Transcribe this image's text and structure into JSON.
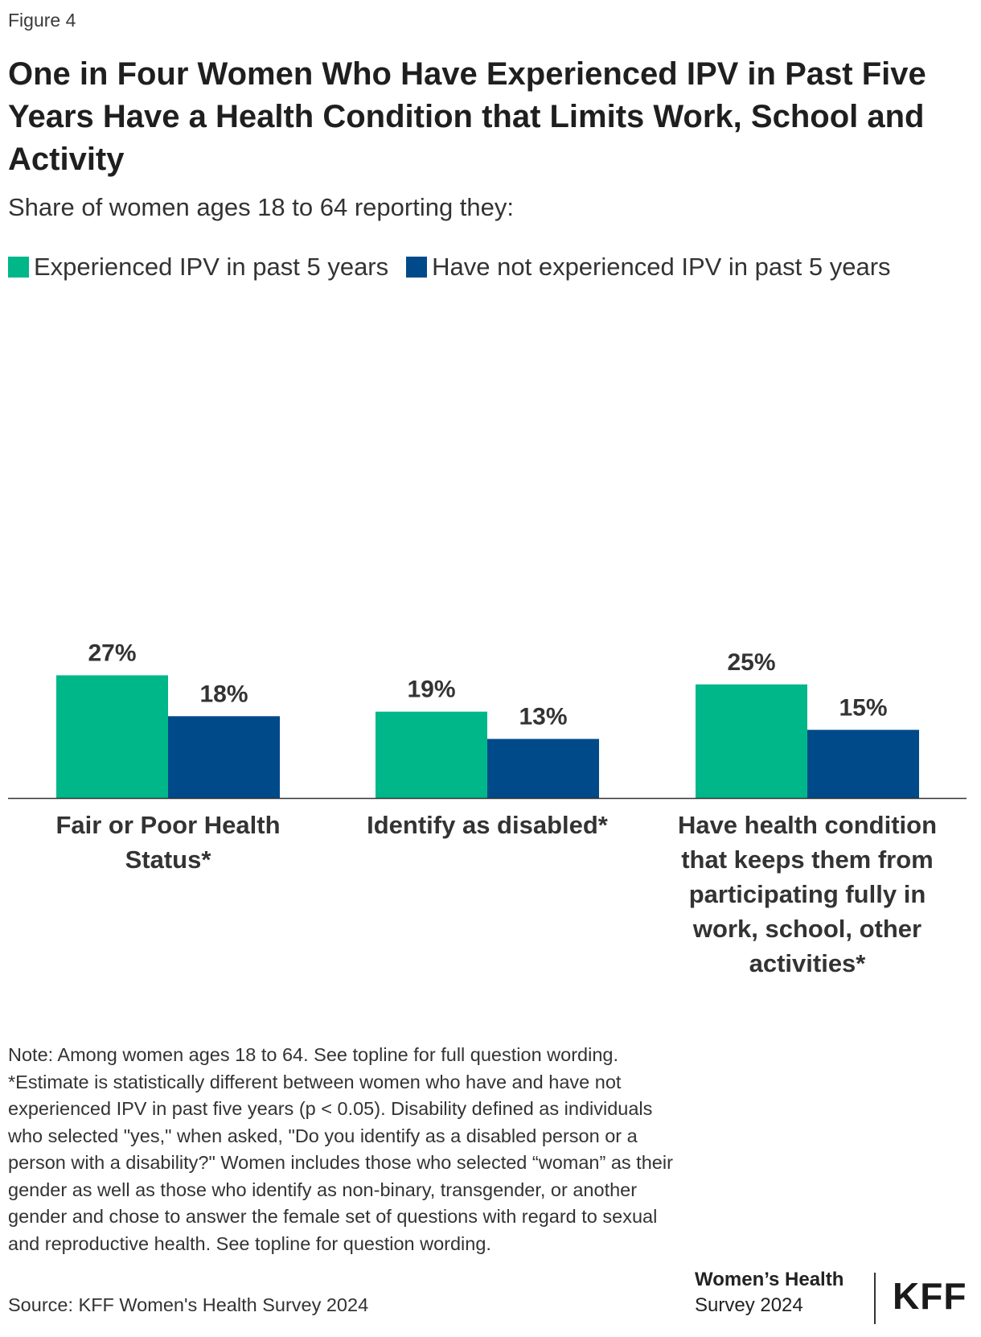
{
  "figure_label": "Figure 4",
  "title": "One in Four Women Who Have Experienced IPV in Past Five Years Have a Health Condition that Limits Work, School and Activity",
  "subtitle": "Share of women ages 18 to 64 reporting they:",
  "colors": {
    "ipv": "#00B78A",
    "no_ipv": "#004A8A",
    "axis": "#333333"
  },
  "chart_data": {
    "type": "bar",
    "title": "One in Four Women Who Have Experienced IPV in Past Five Years Have a Health Condition that Limits Work, School and Activity",
    "subtitle": "Share of women ages 18 to 64 reporting they:",
    "categories": [
      [
        "Fair or Poor Health",
        "Status*"
      ],
      [
        "Identify as disabled*"
      ],
      [
        "Have health condition",
        "that keeps them from",
        "participating fully in",
        "work, school, other",
        "activities*"
      ]
    ],
    "series": [
      {
        "name": "Experienced IPV in past 5 years",
        "color": "#00B78A",
        "values": [
          27,
          19,
          25
        ],
        "labels": [
          "27%",
          "19%",
          "25%"
        ]
      },
      {
        "name": "Have not experienced IPV in past 5 years",
        "color": "#004A8A",
        "values": [
          18,
          13,
          15
        ],
        "labels": [
          "18%",
          "13%",
          "15%"
        ]
      }
    ],
    "xlabel": "",
    "ylabel": "",
    "ylim": [
      0,
      100
    ],
    "grid": false,
    "legend_position": "top-left"
  },
  "note": "Note: Among women ages 18 to 64. See topline for full question wording. *Estimate is statistically different between women who have and have not experienced IPV in past five years (p < 0.05). Disability defined as individuals who selected \"yes,\" when asked, \"Do you identify as a disabled person or a person with a disability?\" Women includes those who selected “woman” as their gender as well as those who identify as non-binary, transgender, or another gender and chose to answer the female set of questions with regard to sexual and reproductive health. See topline for question wording.",
  "source": "Source: KFF Women's Health Survey 2024",
  "brand": {
    "survey_line1": "Women’s Health",
    "survey_line2": "Survey 2024",
    "logo": "KFF"
  }
}
